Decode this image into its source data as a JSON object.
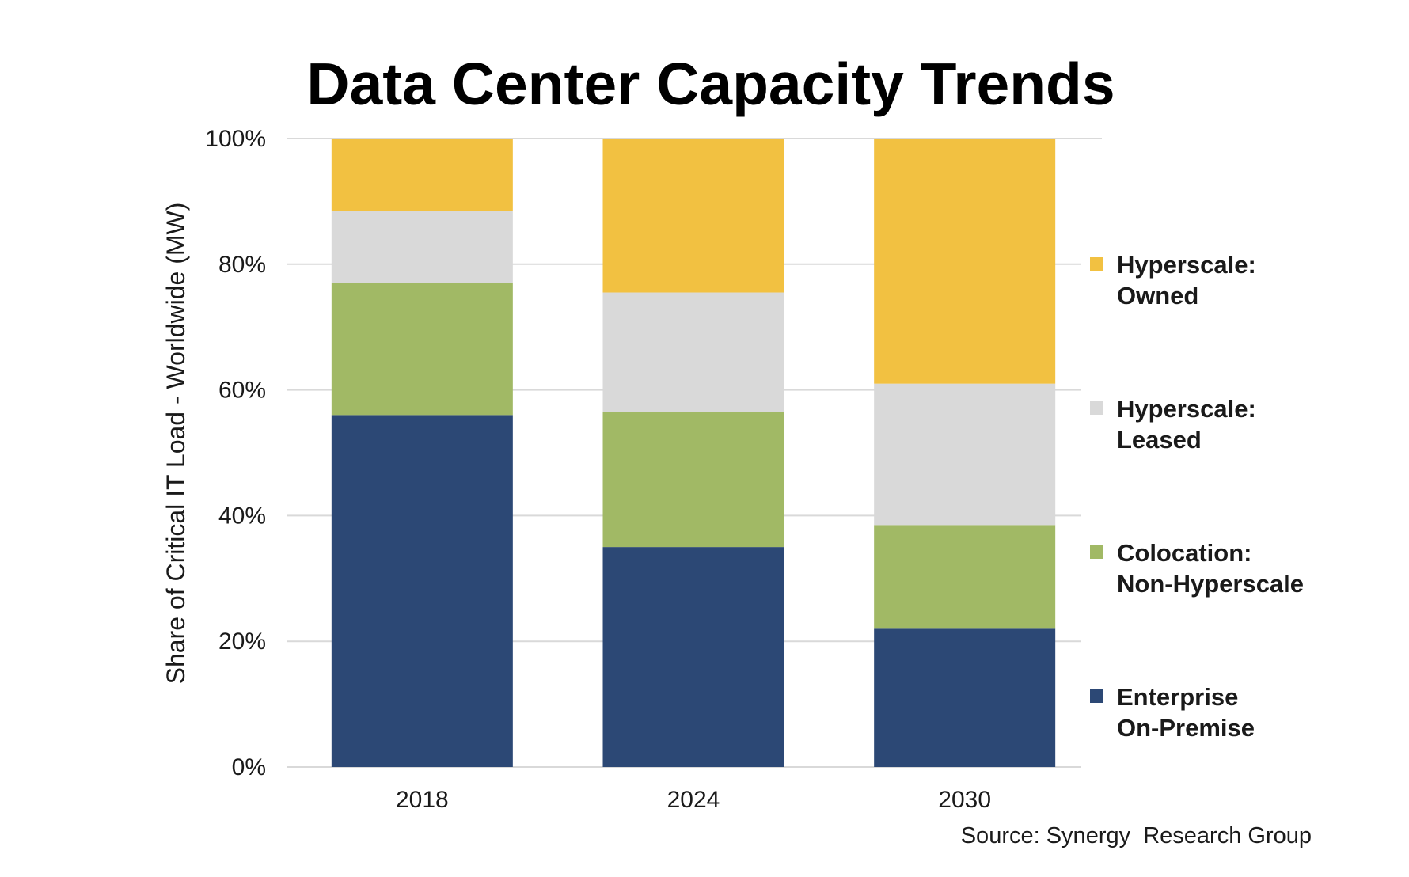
{
  "chart_data": {
    "type": "bar",
    "stacked": true,
    "title": "Data Center Capacity Trends",
    "ylabel": "Share of Critical IT Load - Worldwide (MW)",
    "xlabel": "",
    "categories": [
      "2018",
      "2024",
      "2030"
    ],
    "ylim": [
      0,
      100
    ],
    "yticks": [
      0,
      20,
      40,
      60,
      80,
      100
    ],
    "ytick_labels": [
      "0%",
      "20%",
      "40%",
      "60%",
      "80%",
      "100%"
    ],
    "grid": true,
    "legend_position": "right",
    "series": [
      {
        "name": "Enterprise On-Premise",
        "label_lines": [
          "Enterprise",
          "On-Premise"
        ],
        "color": "#2c4875",
        "values": [
          56,
          35,
          22
        ]
      },
      {
        "name": "Colocation: Non-Hyperscale",
        "label_lines": [
          "Colocation:",
          "Non-Hyperscale"
        ],
        "color": "#a1b965",
        "values": [
          21,
          21.5,
          16.5
        ]
      },
      {
        "name": "Hyperscale: Leased",
        "label_lines": [
          "Hyperscale:",
          "Leased"
        ],
        "color": "#d9d9d9",
        "values": [
          11.5,
          19,
          22.5
        ]
      },
      {
        "name": "Hyperscale: Owned",
        "label_lines": [
          "Hyperscale:",
          "Owned"
        ],
        "color": "#f2c141",
        "values": [
          11.5,
          24.5,
          39
        ]
      }
    ],
    "source": "Source: Synergy  Research Group"
  }
}
